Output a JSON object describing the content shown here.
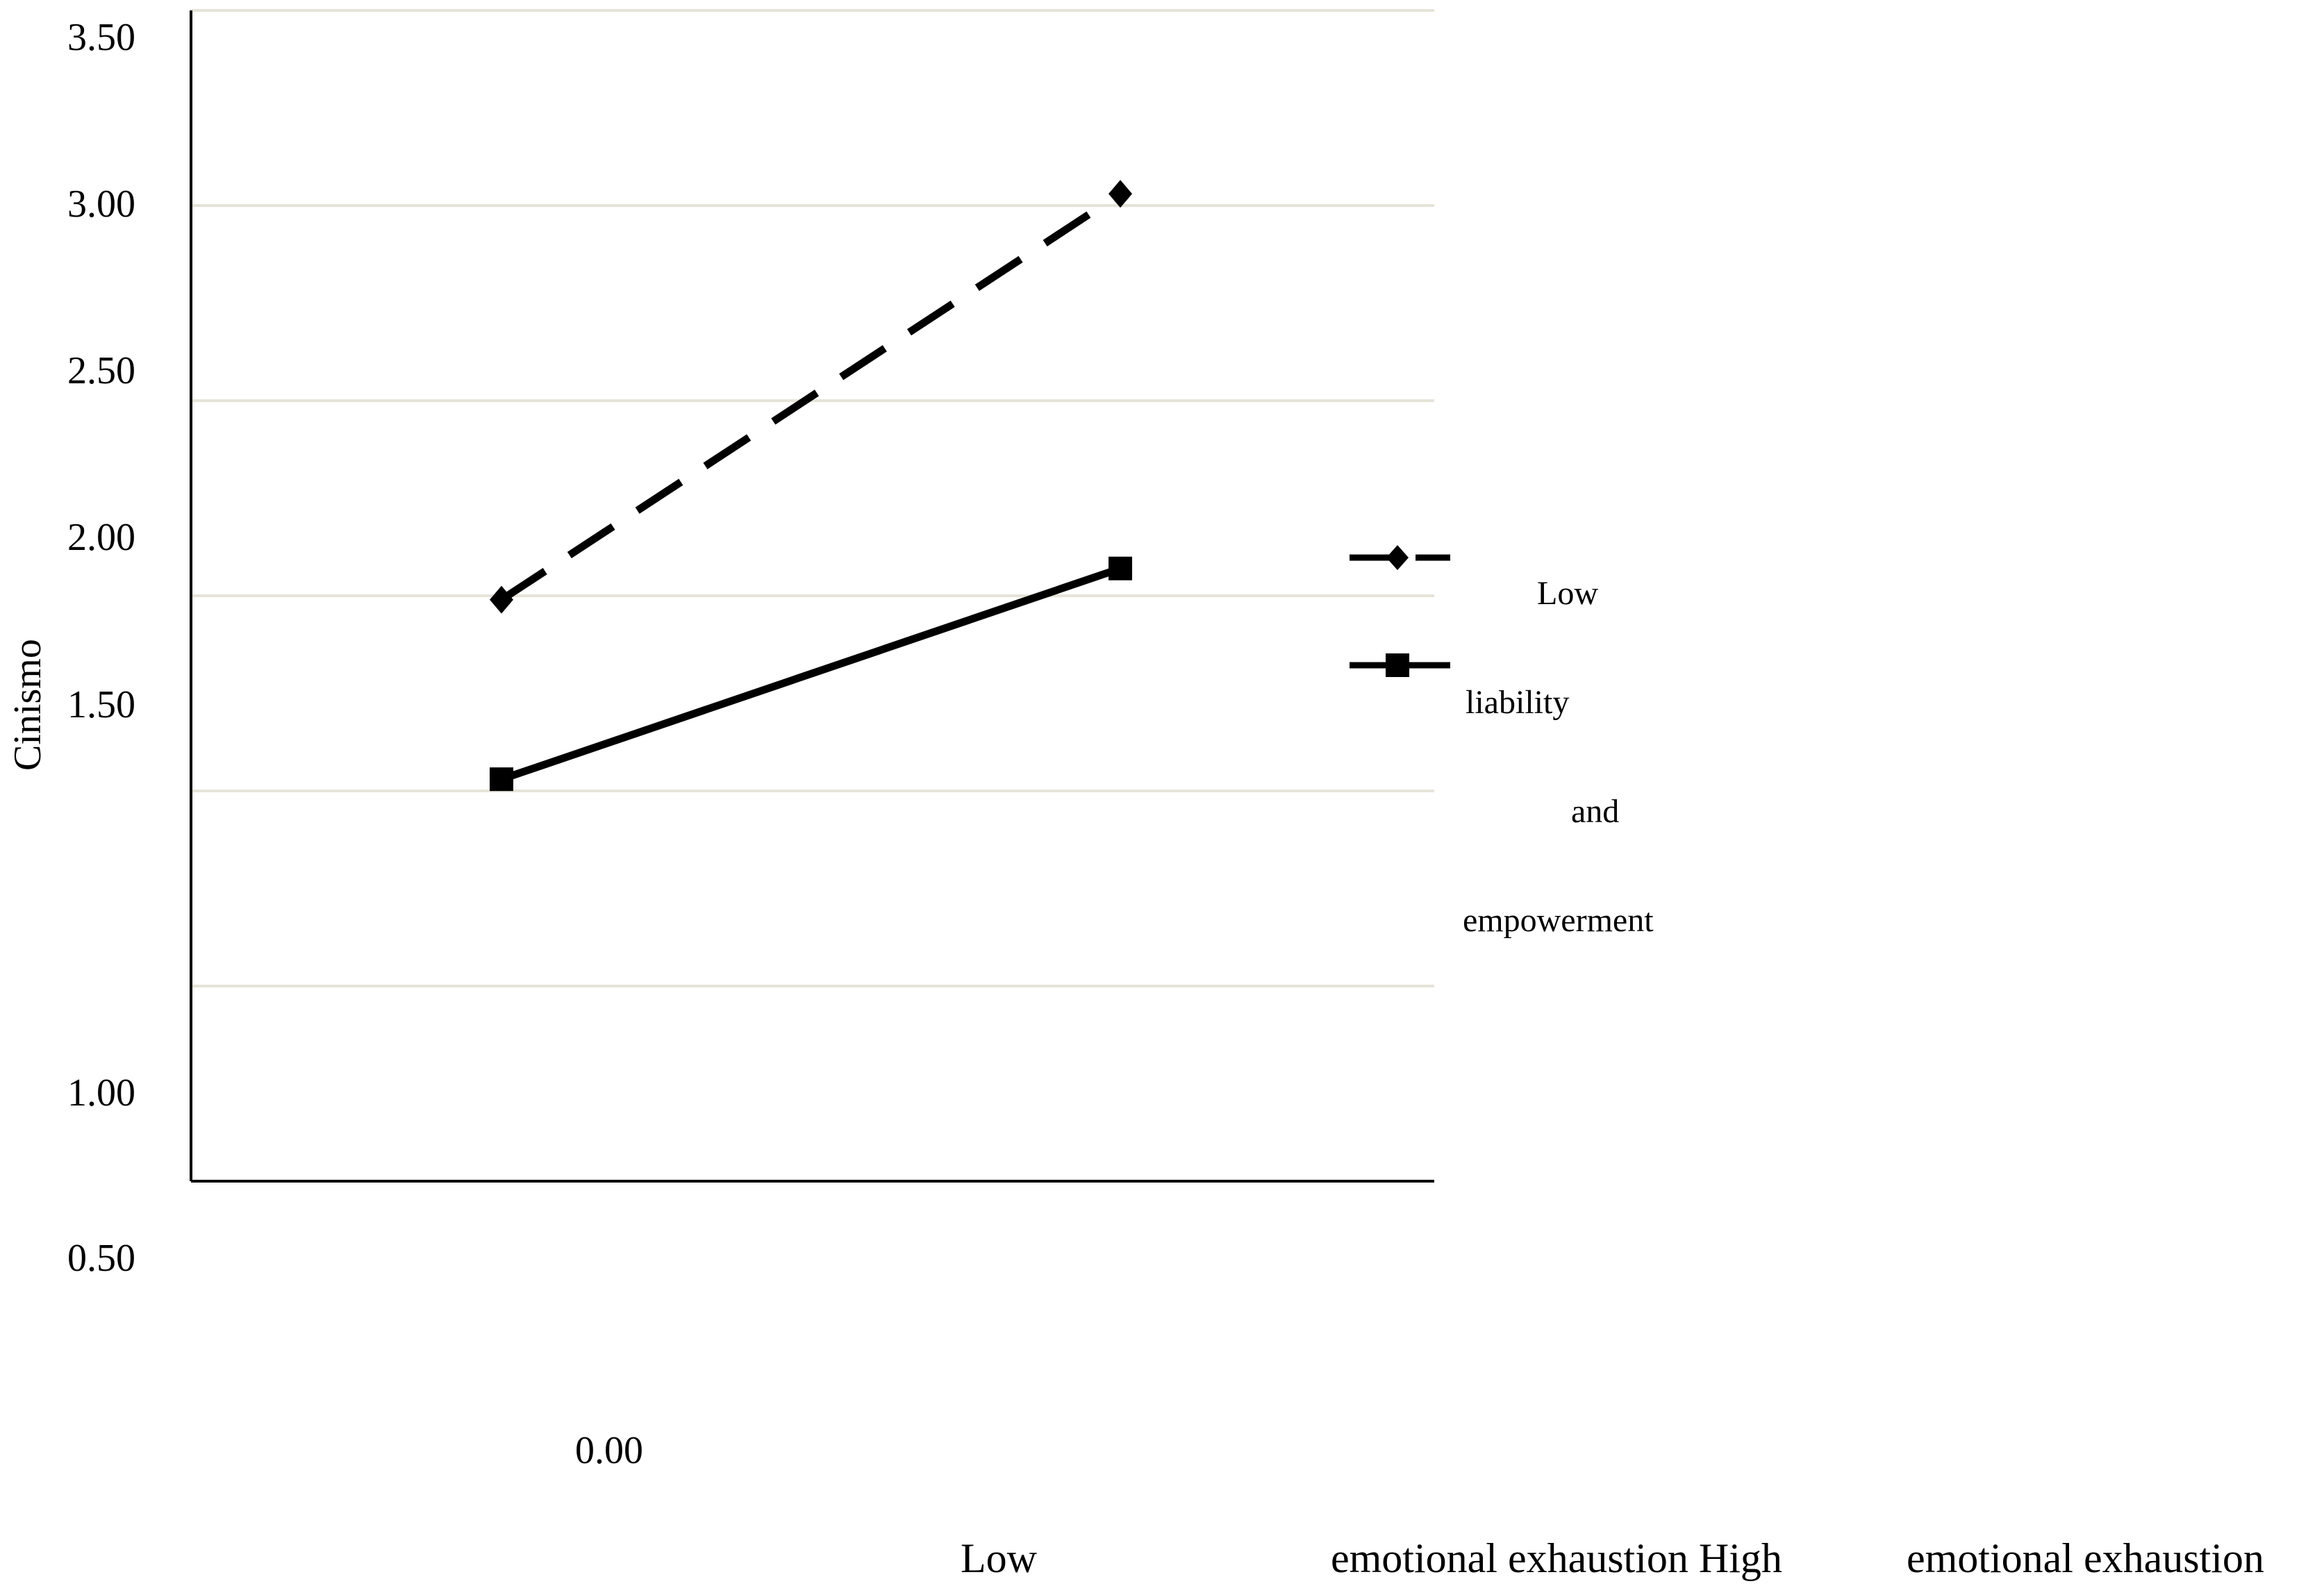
{
  "chart_data": {
    "type": "line",
    "ylabel": "Cinismo",
    "ylim": [
      0.5,
      3.5
    ],
    "y_tick_labels": [
      "3.50",
      "3.00",
      "2.50",
      "2.00",
      "1.50",
      "1.00",
      "0.50"
    ],
    "extra_x_label": "0.00",
    "categories": [
      "Low emotional exhaustion",
      "High emotional exhaustion"
    ],
    "x_label_line": {
      "a": "Low",
      "b": "emotional exhaustion High",
      "c": "emotional exhaustion"
    },
    "legend_words": [
      "Low",
      "liability",
      "and",
      "empowerment"
    ],
    "grid": true,
    "series": [
      {
        "style": "dashed",
        "marker": "diamond",
        "values": [
          1.99,
          3.03
        ]
      },
      {
        "style": "solid",
        "marker": "square",
        "values": [
          1.53,
          2.07
        ]
      }
    ]
  }
}
